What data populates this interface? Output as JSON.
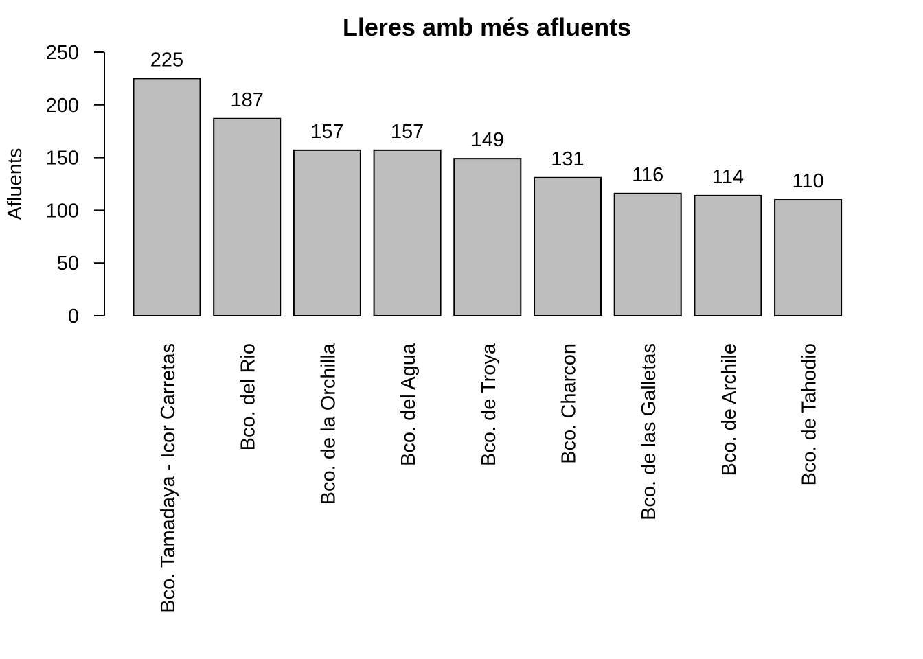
{
  "chart_data": {
    "type": "bar",
    "title": "Lleres amb més afluents",
    "xlabel": "",
    "ylabel": "Afluents",
    "ylim": [
      0,
      250
    ],
    "yticks": [
      0,
      50,
      100,
      150,
      200,
      250
    ],
    "grid": false,
    "categories": [
      "Bco. Tamadaya - Icor Carretas",
      "Bco. del Rio",
      "Bco. de la Orchilla",
      "Bco. del Agua",
      "Bco. de Troya",
      "Bco. Charcon",
      "Bco. de las Galletas",
      "Bco. de Archile",
      "Bco. de Tahodio"
    ],
    "values": [
      225,
      187,
      157,
      157,
      149,
      131,
      116,
      114,
      110
    ],
    "data_labels": [
      "225",
      "187",
      "157",
      "157",
      "149",
      "131",
      "116",
      "114",
      "110"
    ],
    "bar_color": "#bebebe",
    "border_color": "#000000"
  }
}
